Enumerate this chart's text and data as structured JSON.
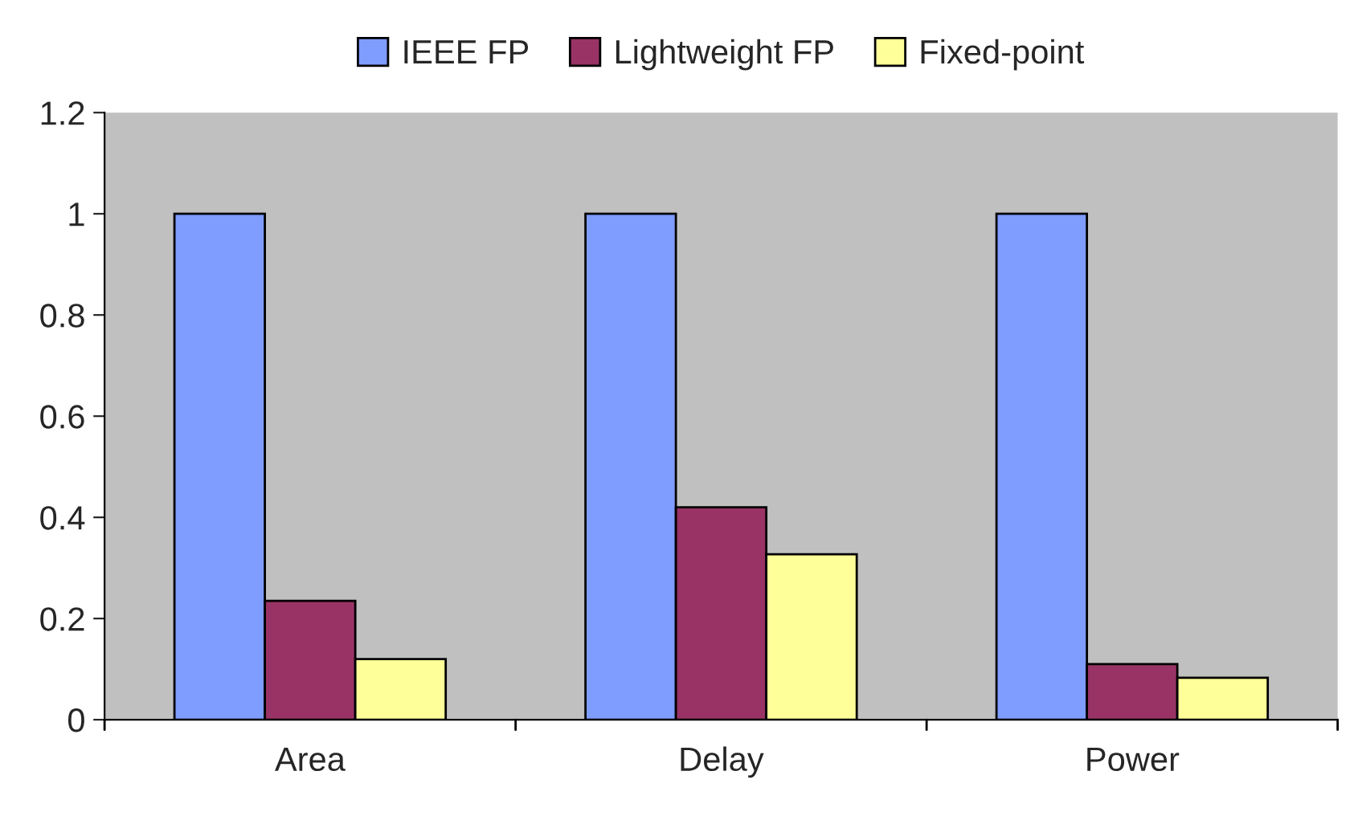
{
  "chart_data": {
    "type": "bar",
    "categories": [
      "Area",
      "Delay",
      "Power"
    ],
    "series": [
      {
        "name": "IEEE FP",
        "color": "#7f9cff",
        "values": [
          1,
          1,
          1
        ]
      },
      {
        "name": "Lightweight FP",
        "color": "#993366",
        "values": [
          0.235,
          0.42,
          0.11
        ]
      },
      {
        "name": "Fixed-point",
        "color": "#ffff99",
        "values": [
          0.12,
          0.327,
          0.083
        ]
      }
    ],
    "ylim": [
      0,
      1.2
    ],
    "yticks": [
      0,
      0.2,
      0.4,
      0.6,
      0.8,
      1,
      1.2
    ],
    "grid": false,
    "legend": "top"
  }
}
